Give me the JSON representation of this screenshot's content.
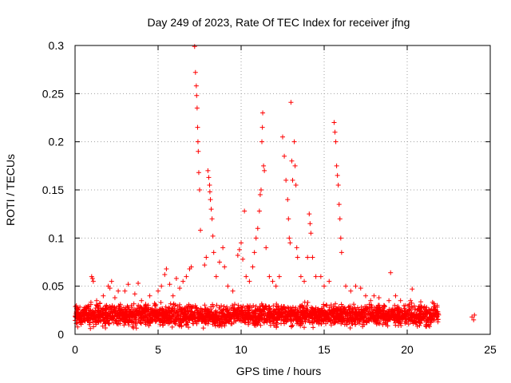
{
  "chart_data": {
    "type": "scatter",
    "title": "Day 249 of 2023, Rate Of TEC Index for receiver jfng",
    "xlabel": "GPS time / hours",
    "ylabel": "ROTI / TECUs",
    "xlim": [
      0,
      25
    ],
    "ylim": [
      0,
      0.3
    ],
    "xticks": [
      0,
      5,
      10,
      15,
      20,
      25
    ],
    "xtick_labels": [
      "0",
      "5",
      "10",
      "15",
      "20",
      "25"
    ],
    "yticks": [
      0,
      0.05,
      0.1,
      0.15,
      0.2,
      0.25,
      0.3
    ],
    "ytick_labels": [
      "0",
      "0.05",
      "0.1",
      "0.15",
      "0.2",
      "0.25",
      "0.3"
    ],
    "grid": true,
    "marker": "+",
    "color": "#ff0000",
    "baseline_band": {
      "x_range": [
        0,
        21.9
      ],
      "y_range": [
        0.005,
        0.035
      ]
    },
    "series": [
      {
        "points": [
          [
            0.1,
            0.018
          ],
          [
            0.3,
            0.022
          ],
          [
            0.5,
            0.015
          ],
          [
            0.7,
            0.028
          ],
          [
            0.9,
            0.012
          ],
          [
            1.0,
            0.06
          ],
          [
            1.05,
            0.058
          ],
          [
            1.1,
            0.055
          ],
          [
            1.3,
            0.035
          ],
          [
            1.5,
            0.02
          ],
          [
            1.7,
            0.04
          ],
          [
            1.9,
            0.03
          ],
          [
            2.0,
            0.05
          ],
          [
            2.1,
            0.048
          ],
          [
            2.2,
            0.055
          ],
          [
            2.4,
            0.038
          ],
          [
            2.6,
            0.045
          ],
          [
            2.8,
            0.025
          ],
          [
            3.0,
            0.045
          ],
          [
            3.2,
            0.052
          ],
          [
            3.4,
            0.03
          ],
          [
            3.6,
            0.042
          ],
          [
            3.8,
            0.053
          ],
          [
            4.0,
            0.035
          ],
          [
            4.3,
            0.028
          ],
          [
            4.5,
            0.04
          ],
          [
            4.8,
            0.03
          ],
          [
            5.0,
            0.045
          ],
          [
            5.2,
            0.05
          ],
          [
            5.4,
            0.062
          ],
          [
            5.5,
            0.068
          ],
          [
            5.7,
            0.052
          ],
          [
            5.9,
            0.04
          ],
          [
            6.1,
            0.058
          ],
          [
            6.3,
            0.048
          ],
          [
            6.5,
            0.055
          ],
          [
            6.7,
            0.06
          ],
          [
            6.9,
            0.068
          ],
          [
            7.0,
            0.07
          ],
          [
            7.2,
            0.299
          ],
          [
            7.25,
            0.272
          ],
          [
            7.3,
            0.258
          ],
          [
            7.32,
            0.248
          ],
          [
            7.35,
            0.235
          ],
          [
            7.38,
            0.215
          ],
          [
            7.4,
            0.2
          ],
          [
            7.42,
            0.19
          ],
          [
            7.45,
            0.168
          ],
          [
            7.5,
            0.15
          ],
          [
            7.55,
            0.108
          ],
          [
            7.8,
            0.072
          ],
          [
            7.9,
            0.08
          ],
          [
            8.0,
            0.17
          ],
          [
            8.05,
            0.163
          ],
          [
            8.1,
            0.155
          ],
          [
            8.12,
            0.148
          ],
          [
            8.15,
            0.14
          ],
          [
            8.2,
            0.13
          ],
          [
            8.25,
            0.12
          ],
          [
            8.3,
            0.102
          ],
          [
            8.35,
            0.085
          ],
          [
            8.5,
            0.06
          ],
          [
            8.7,
            0.075
          ],
          [
            8.9,
            0.09
          ],
          [
            9.0,
            0.07
          ],
          [
            9.2,
            0.05
          ],
          [
            9.5,
            0.045
          ],
          [
            9.8,
            0.082
          ],
          [
            9.9,
            0.088
          ],
          [
            10.0,
            0.095
          ],
          [
            10.1,
            0.078
          ],
          [
            10.2,
            0.128
          ],
          [
            10.3,
            0.06
          ],
          [
            10.5,
            0.055
          ],
          [
            10.7,
            0.07
          ],
          [
            10.8,
            0.085
          ],
          [
            10.9,
            0.1
          ],
          [
            11.0,
            0.11
          ],
          [
            11.1,
            0.128
          ],
          [
            11.15,
            0.145
          ],
          [
            11.2,
            0.15
          ],
          [
            11.25,
            0.2
          ],
          [
            11.28,
            0.215
          ],
          [
            11.3,
            0.23
          ],
          [
            11.35,
            0.175
          ],
          [
            11.4,
            0.17
          ],
          [
            11.5,
            0.09
          ],
          [
            11.7,
            0.06
          ],
          [
            11.9,
            0.055
          ],
          [
            12.1,
            0.05
          ],
          [
            12.3,
            0.06
          ],
          [
            12.5,
            0.205
          ],
          [
            12.6,
            0.185
          ],
          [
            12.7,
            0.16
          ],
          [
            12.8,
            0.14
          ],
          [
            12.85,
            0.12
          ],
          [
            12.9,
            0.1
          ],
          [
            12.95,
            0.095
          ],
          [
            13.0,
            0.241
          ],
          [
            13.05,
            0.18
          ],
          [
            13.1,
            0.16
          ],
          [
            13.2,
            0.2
          ],
          [
            13.25,
            0.175
          ],
          [
            13.3,
            0.155
          ],
          [
            13.35,
            0.09
          ],
          [
            13.4,
            0.08
          ],
          [
            13.6,
            0.06
          ],
          [
            13.8,
            0.055
          ],
          [
            14.0,
            0.08
          ],
          [
            14.1,
            0.125
          ],
          [
            14.15,
            0.115
          ],
          [
            14.2,
            0.105
          ],
          [
            14.3,
            0.08
          ],
          [
            14.5,
            0.06
          ],
          [
            14.8,
            0.06
          ],
          [
            15.0,
            0.05
          ],
          [
            15.3,
            0.055
          ],
          [
            15.6,
            0.22
          ],
          [
            15.65,
            0.21
          ],
          [
            15.7,
            0.2
          ],
          [
            15.75,
            0.175
          ],
          [
            15.8,
            0.165
          ],
          [
            15.85,
            0.155
          ],
          [
            15.9,
            0.135
          ],
          [
            15.95,
            0.12
          ],
          [
            16.0,
            0.1
          ],
          [
            16.05,
            0.085
          ],
          [
            16.3,
            0.05
          ],
          [
            16.6,
            0.045
          ],
          [
            16.9,
            0.05
          ],
          [
            17.2,
            0.048
          ],
          [
            17.5,
            0.04
          ],
          [
            17.8,
            0.035
          ],
          [
            18.0,
            0.04
          ],
          [
            18.3,
            0.038
          ],
          [
            18.6,
            0.03
          ],
          [
            18.9,
            0.035
          ],
          [
            19.0,
            0.064
          ],
          [
            19.3,
            0.04
          ],
          [
            19.6,
            0.035
          ],
          [
            19.9,
            0.03
          ],
          [
            20.2,
            0.035
          ],
          [
            20.3,
            0.047
          ],
          [
            20.6,
            0.025
          ],
          [
            20.9,
            0.028
          ],
          [
            21.3,
            0.025
          ],
          [
            21.6,
            0.032
          ],
          [
            21.8,
            0.03
          ],
          [
            23.9,
            0.018
          ],
          [
            24.0,
            0.015
          ],
          [
            24.05,
            0.02
          ]
        ]
      }
    ]
  }
}
